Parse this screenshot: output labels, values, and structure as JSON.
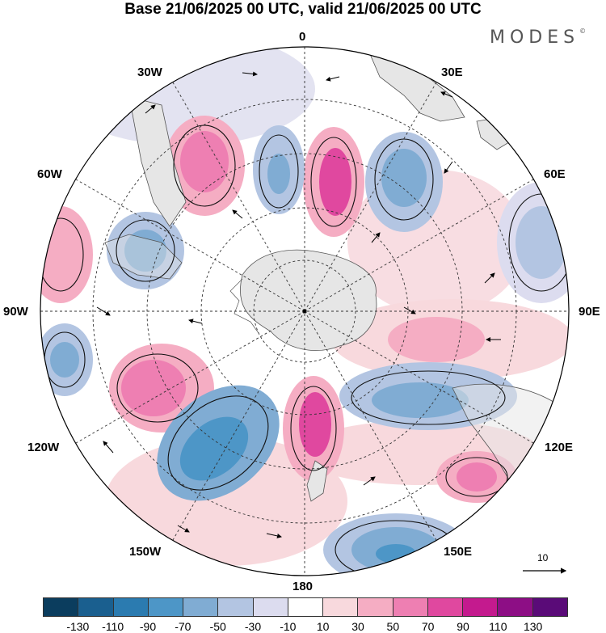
{
  "title": "Base 21/06/2025 00 UTC, valid 21/06/2025 00 UTC",
  "brand": {
    "name": "MODES",
    "mark": "©"
  },
  "lon_labels": {
    "n0": "0",
    "e30": "30E",
    "e60": "60E",
    "e90": "90E",
    "e120": "120E",
    "e150": "150E",
    "s180": "180",
    "w150": "150W",
    "w120": "120W",
    "w90": "90W",
    "w60": "60W",
    "w30": "30W"
  },
  "projection": "south-polar-stereographic",
  "colorbar": {
    "ticks": [
      "-130",
      "-110",
      "-90",
      "-70",
      "-50",
      "-30",
      "-10",
      "10",
      "30",
      "50",
      "70",
      "90",
      "110",
      "130"
    ],
    "colors": [
      "#0b3d5e",
      "#1a5f8f",
      "#2b7bb0",
      "#4d96c7",
      "#80acd3",
      "#b3c5e2",
      "#dcdcef",
      "#ffffff",
      "#f8d9dd",
      "#f5adc3",
      "#ee7fb2",
      "#e0489f",
      "#c41a8e",
      "#8d0e85",
      "#5a0b78"
    ]
  },
  "vector_scale": {
    "label": "10"
  },
  "colors": {
    "land": "#e6e6e6",
    "coast": "#555555",
    "grid": "#333333"
  }
}
